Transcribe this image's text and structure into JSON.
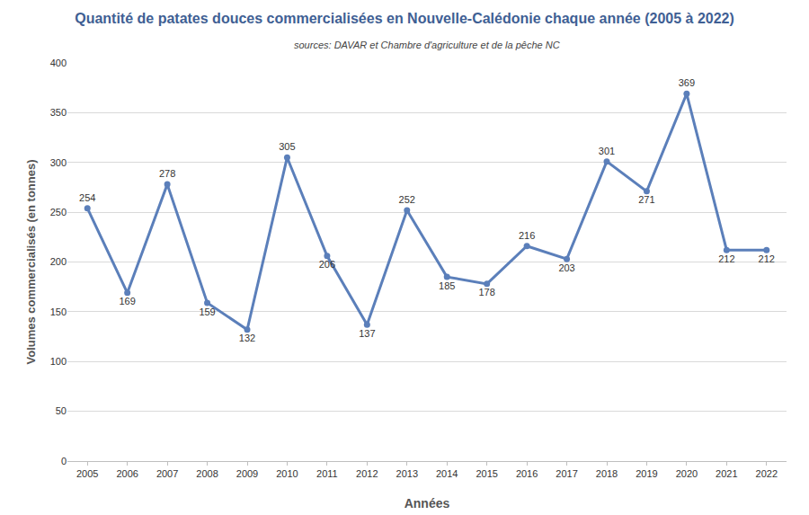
{
  "chart_data": {
    "type": "line",
    "title": "Quantité de patates douces commercialisées en Nouvelle-Calédonie chaque année (2005 à 2022)",
    "subtitle": "sources: DAVAR et Chambre d'agriculture et de la pêche NC",
    "x_label": "Années",
    "y_label": "Volumes commercialisés (en tonnes)",
    "categories": [
      "2005",
      "2006",
      "2007",
      "2008",
      "2009",
      "2010",
      "2011",
      "2012",
      "2013",
      "2014",
      "2015",
      "2016",
      "2017",
      "2018",
      "2019",
      "2020",
      "2021",
      "2022"
    ],
    "values": [
      254,
      169,
      278,
      159,
      132,
      305,
      206,
      137,
      252,
      185,
      178,
      216,
      203,
      301,
      271,
      369,
      212,
      212
    ],
    "color": "#5b7fba",
    "marker": "circle",
    "ylim": [
      0,
      400
    ],
    "yticks": [
      0,
      50,
      100,
      150,
      200,
      250,
      300,
      350,
      400
    ],
    "grid": true,
    "data_labels": true
  }
}
